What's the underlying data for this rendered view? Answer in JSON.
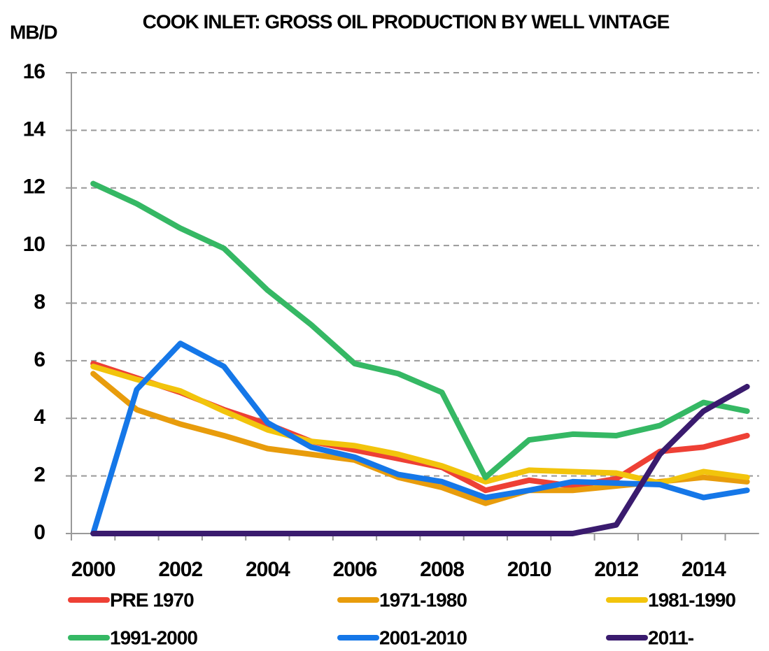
{
  "chart_data": {
    "type": "line",
    "title": "COOK INLET: GROSS OIL PRODUCTION BY WELL VINTAGE",
    "y_label": "MB/D",
    "categories": [
      "2000",
      null,
      "2002",
      null,
      "2004",
      null,
      "2006",
      null,
      "2008",
      null,
      "2010",
      null,
      "2012",
      null,
      "2014",
      null
    ],
    "series": [
      {
        "name": "PRE 1970",
        "color": "#ee4035",
        "values": [
          5.9,
          5.4,
          4.9,
          4.3,
          3.8,
          3.2,
          2.9,
          2.6,
          2.3,
          1.5,
          1.85,
          1.65,
          1.9,
          2.85,
          3.0,
          3.4
        ]
      },
      {
        "name": "1971-1980",
        "color": "#e89c0c",
        "values": [
          5.55,
          4.3,
          3.8,
          3.4,
          2.95,
          2.75,
          2.55,
          1.95,
          1.6,
          1.05,
          1.5,
          1.5,
          1.65,
          1.8,
          1.95,
          1.8
        ]
      },
      {
        "name": "1981-1990",
        "color": "#f2c40c",
        "values": [
          5.8,
          5.35,
          4.95,
          4.25,
          3.6,
          3.2,
          3.05,
          2.75,
          2.35,
          1.8,
          2.2,
          2.15,
          2.1,
          1.75,
          2.15,
          1.95
        ]
      },
      {
        "name": "1991-2000",
        "color": "#35b864",
        "values": [
          12.15,
          11.45,
          10.6,
          9.9,
          8.45,
          7.25,
          5.9,
          5.55,
          4.9,
          1.95,
          3.25,
          3.45,
          3.4,
          3.75,
          4.55,
          4.25
        ]
      },
      {
        "name": "2001-2010",
        "color": "#1577e8",
        "values": [
          0,
          5.0,
          6.6,
          5.8,
          3.85,
          3.0,
          2.65,
          2.05,
          1.8,
          1.25,
          1.5,
          1.8,
          1.75,
          1.7,
          1.25,
          1.5
        ]
      },
      {
        "name": "2011-",
        "color": "#3a1b6e",
        "values": [
          0,
          0,
          0,
          0,
          0,
          0,
          0,
          0,
          0,
          0,
          0,
          0,
          0.3,
          2.75,
          4.25,
          5.1
        ]
      }
    ],
    "ylim": [
      0,
      16
    ],
    "yticks": [
      0,
      2,
      4,
      6,
      8,
      10,
      12,
      14,
      16
    ],
    "grid": true,
    "legend": "bottom"
  }
}
